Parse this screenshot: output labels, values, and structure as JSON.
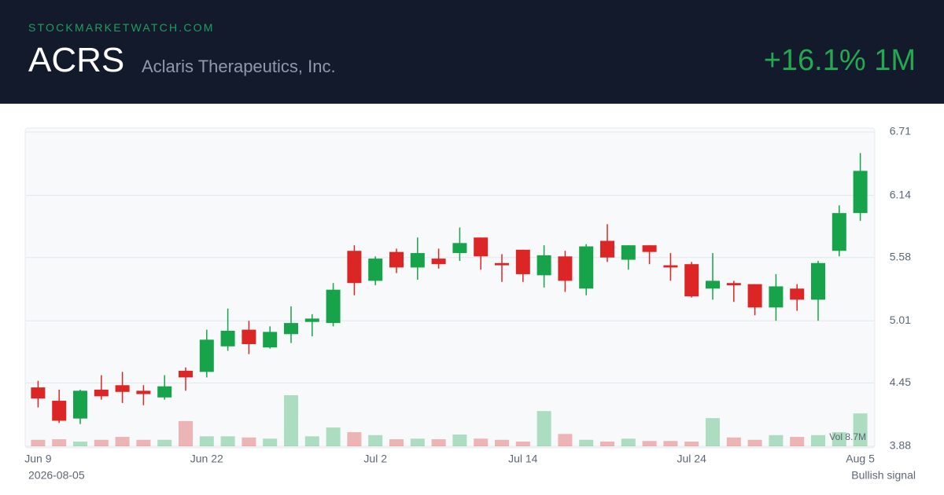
{
  "header": {
    "site": "STOCKMARKETWATCH.COM",
    "ticker": "ACRS",
    "company": "Aclaris Therapeutics, Inc.",
    "change": "+16.1% 1M"
  },
  "chart_data": {
    "type": "candlestick",
    "categories": [
      "Jun 9",
      null,
      null,
      null,
      null,
      null,
      null,
      null,
      "Jun 22",
      null,
      null,
      null,
      null,
      null,
      null,
      null,
      "Jul 2",
      null,
      null,
      null,
      null,
      null,
      null,
      "Jul 14",
      null,
      null,
      null,
      null,
      null,
      null,
      null,
      "Jul 24",
      null,
      null,
      null,
      null,
      null,
      null,
      null,
      "Aug 5"
    ],
    "open": [
      4.41,
      4.29,
      4.13,
      4.39,
      4.43,
      4.38,
      4.32,
      4.56,
      4.55,
      4.78,
      4.93,
      4.77,
      4.89,
      5.0,
      4.99,
      5.64,
      5.37,
      5.63,
      5.49,
      5.57,
      5.62,
      5.76,
      5.53,
      5.65,
      5.42,
      5.59,
      5.3,
      5.73,
      5.56,
      5.69,
      5.51,
      5.52,
      5.3,
      5.35,
      5.34,
      5.13,
      5.3,
      5.2,
      5.64,
      5.98
    ],
    "high": [
      4.47,
      4.39,
      4.39,
      4.52,
      4.55,
      4.43,
      4.52,
      4.59,
      4.93,
      5.12,
      5.01,
      4.96,
      5.14,
      5.07,
      5.35,
      5.69,
      5.59,
      5.66,
      5.76,
      5.66,
      5.85,
      5.76,
      5.61,
      5.65,
      5.69,
      5.64,
      5.7,
      5.88,
      5.69,
      5.69,
      5.62,
      5.54,
      5.62,
      5.37,
      5.34,
      5.43,
      5.34,
      5.55,
      6.05,
      6.52
    ],
    "low": [
      4.23,
      4.09,
      4.08,
      4.3,
      4.27,
      4.25,
      4.3,
      4.38,
      4.5,
      4.74,
      4.71,
      4.76,
      4.81,
      4.87,
      4.96,
      5.24,
      5.33,
      5.44,
      5.38,
      5.48,
      5.55,
      5.47,
      5.36,
      5.36,
      5.31,
      5.27,
      5.24,
      5.54,
      5.47,
      5.52,
      5.37,
      5.22,
      5.2,
      5.18,
      5.06,
      5.01,
      5.1,
      5.01,
      5.59,
      5.91
    ],
    "close": [
      4.31,
      4.11,
      4.38,
      4.33,
      4.37,
      4.35,
      4.42,
      4.5,
      4.84,
      4.92,
      4.8,
      4.91,
      4.99,
      5.03,
      5.29,
      5.35,
      5.57,
      5.49,
      5.62,
      5.52,
      5.71,
      5.59,
      5.51,
      5.43,
      5.6,
      5.37,
      5.68,
      5.58,
      5.69,
      5.63,
      5.49,
      5.23,
      5.37,
      5.33,
      5.13,
      5.32,
      5.2,
      5.53,
      5.98,
      6.36
    ],
    "volume": [
      1.1,
      1.2,
      0.8,
      1.1,
      1.6,
      1.1,
      1.1,
      4.3,
      1.7,
      1.7,
      1.5,
      1.3,
      8.7,
      1.7,
      3.2,
      2.4,
      1.9,
      1.2,
      1.3,
      1.2,
      2.0,
      1.3,
      1.1,
      0.8,
      6.0,
      2.1,
      1.1,
      0.8,
      1.3,
      0.9,
      0.9,
      0.8,
      4.8,
      1.5,
      1.1,
      1.9,
      1.6,
      1.9,
      2.4,
      5.6
    ],
    "volume_label": "Vol 8.7M",
    "ylim": [
      3.88,
      6.71
    ],
    "yticks": [
      3.88,
      4.45,
      5.01,
      5.58,
      6.14,
      6.71
    ],
    "grid": true,
    "up_color": "#16a34a",
    "down_color": "#dc2626"
  },
  "footer": {
    "date": "2026-08-05",
    "signal": "Bullish signal"
  }
}
